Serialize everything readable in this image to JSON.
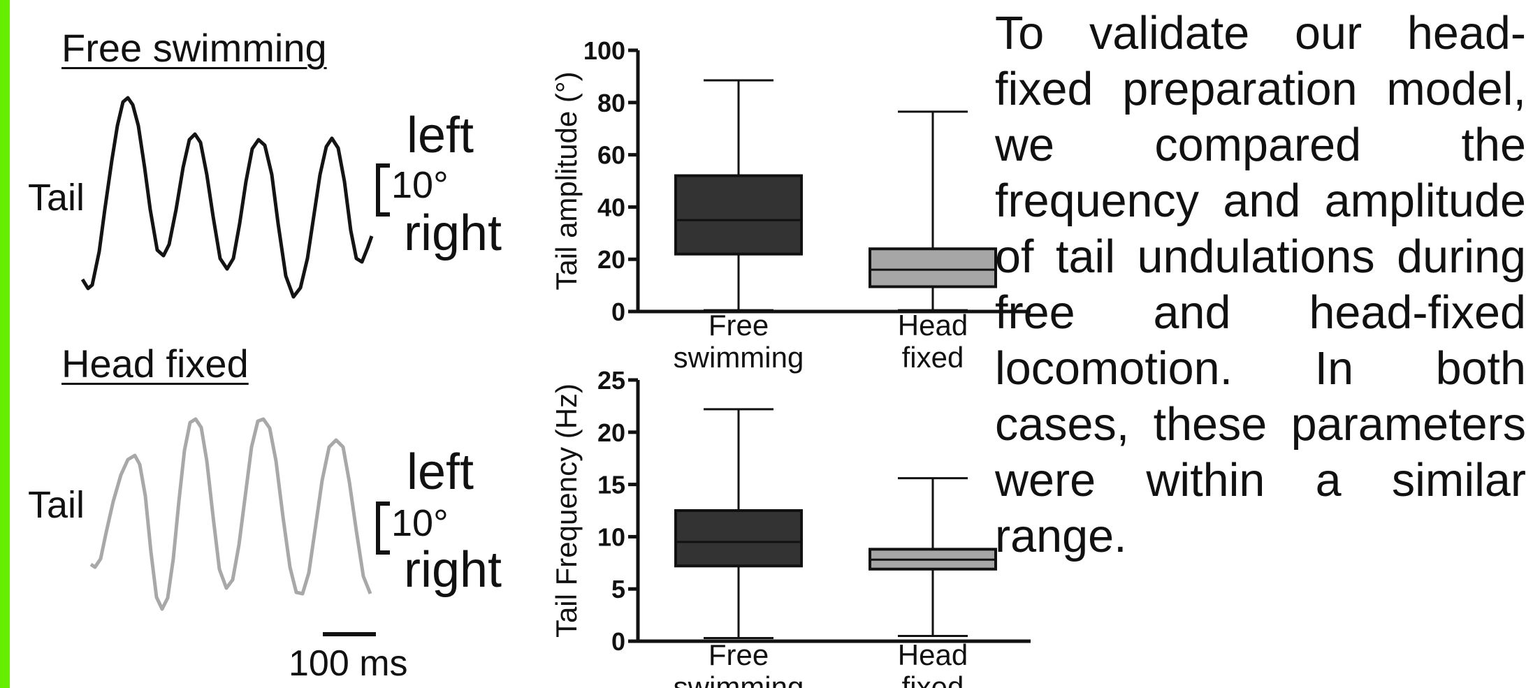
{
  "colors": {
    "accent": "#66ee00",
    "free": "#333333",
    "head": "#a6a6a6",
    "head_trace": "#a8a8a8",
    "axis": "#111111"
  },
  "left_panel": {
    "free_title": "Free swimming",
    "head_title": "Head fixed",
    "tail_label": "Tail",
    "scale_top": "left",
    "scale_value": "10°",
    "scale_bottom": "right",
    "time_scale": "100 ms"
  },
  "description": "To validate our head-fixed preparation model, we compared the frequency and amplitude of tail undulations during free and head-fixed locomotion. In both cases, these parameters were within a similar range.",
  "chart_data": [
    {
      "type": "box",
      "ylabel": "Tail amplitude (°)",
      "ylim": [
        0,
        100
      ],
      "yticks": [
        0,
        20,
        40,
        60,
        80,
        100
      ],
      "categories": [
        "Free swimming",
        "Head fixed"
      ],
      "boxes": [
        {
          "name": "Free swimming",
          "min": 0.5,
          "q1": 22,
          "median": 35,
          "q3": 52,
          "max": 88.5
        },
        {
          "name": "Head fixed",
          "min": 0.5,
          "q1": 9.5,
          "median": 16,
          "q3": 24,
          "max": 76.5
        }
      ]
    },
    {
      "type": "box",
      "ylabel": "Tail Frequency (Hz)",
      "ylim": [
        0,
        25
      ],
      "yticks": [
        0,
        5,
        10,
        15,
        20,
        25
      ],
      "categories": [
        "Free swimming",
        "Head fixed"
      ],
      "boxes": [
        {
          "name": "Free swimming",
          "min": 0.3,
          "q1": 7.2,
          "median": 9.5,
          "q3": 12.5,
          "max": 22.2
        },
        {
          "name": "Head fixed",
          "min": 0.5,
          "q1": 6.9,
          "median": 7.8,
          "q3": 8.8,
          "max": 15.6
        }
      ]
    }
  ]
}
